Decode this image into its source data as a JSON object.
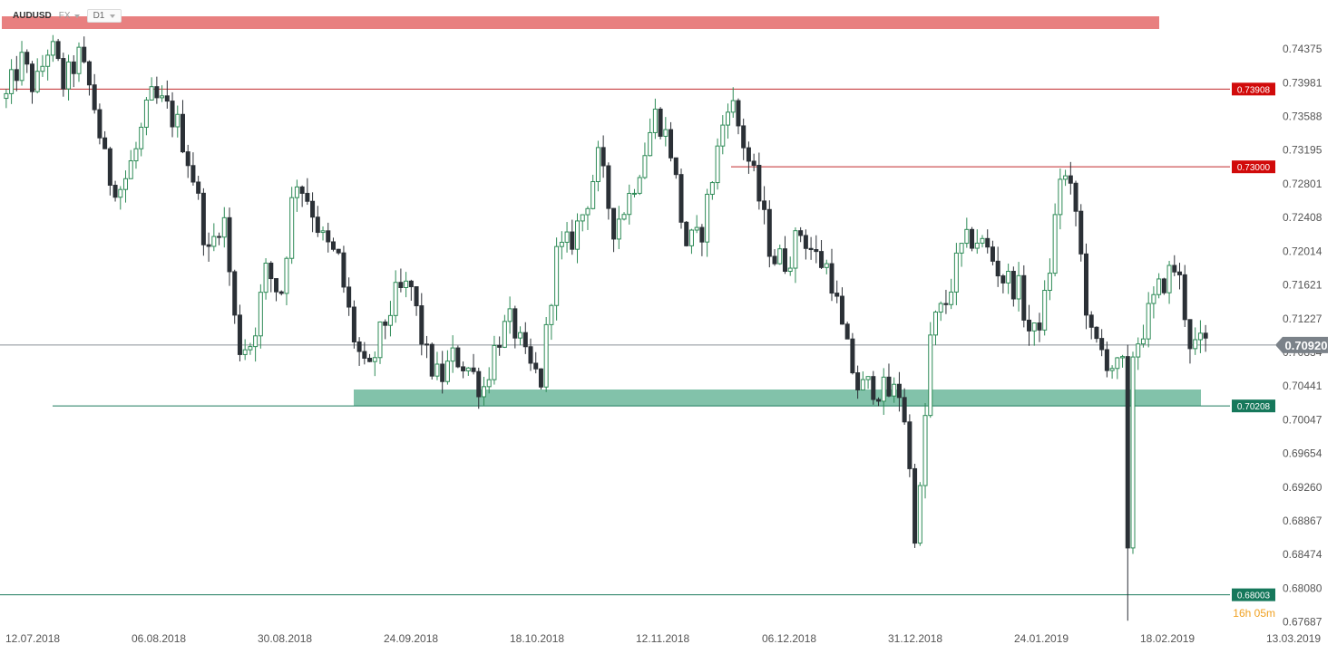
{
  "header": {
    "symbol": "AUDUSD",
    "market": "FX",
    "timeframe": "D1"
  },
  "countdown": "16h 05m",
  "colors": {
    "bull_candle": "#2e8b57",
    "bear_candle": "#2b3036",
    "resistance_line": "#c0292b",
    "support_line": "#1e7b5e",
    "resistance_label_bg": "#d10b0b",
    "support_label_bg": "#16785b",
    "top_zone": "#e88080",
    "support_zone": "#7bbfa5",
    "current_price_bg": "#7b8289",
    "grid_text": "#555555"
  },
  "chart_data": {
    "type": "candlestick",
    "symbol": "AUDUSD",
    "y_range": [
      0.6765,
      0.748
    ],
    "y_ticks": [
      "0.74375",
      "0.73981",
      "0.73588",
      "0.73195",
      "0.72801",
      "0.72408",
      "0.72014",
      "0.71621",
      "0.71227",
      "0.70834",
      "0.70441",
      "0.70047",
      "0.69654",
      "0.69260",
      "0.68867",
      "0.68474",
      "0.68080",
      "0.67687"
    ],
    "x_labels": [
      "12.07.2018",
      "06.08.2018",
      "30.08.2018",
      "24.09.2018",
      "18.10.2018",
      "12.11.2018",
      "06.12.2018",
      "31.12.2018",
      "24.01.2019",
      "18.02.2019",
      "13.03.2019"
    ],
    "current_price": {
      "label": "0.70920",
      "value": 0.7092
    },
    "levels": [
      {
        "label": "0.73908",
        "value": 0.73908,
        "kind": "resistance"
      },
      {
        "label": "0.73000",
        "value": 0.73,
        "kind": "resistance"
      },
      {
        "label": "0.70208",
        "value": 0.70208,
        "kind": "support"
      },
      {
        "label": "0.68003",
        "value": 0.68003,
        "kind": "support"
      }
    ],
    "zones": [
      {
        "kind": "resistance-zone",
        "from": 0.7463,
        "to": 0.7477
      },
      {
        "kind": "support-zone",
        "from": 0.70208,
        "to": 0.704
      }
    ],
    "close_path": [
      0.738,
      0.7425,
      0.739,
      0.7445,
      0.7395,
      0.743,
      0.738,
      0.729,
      0.7275,
      0.732,
      0.738,
      0.737,
      0.7345,
      0.7285,
      0.7195,
      0.725,
      0.709,
      0.7095,
      0.718,
      0.715,
      0.729,
      0.726,
      0.721,
      0.719,
      0.7105,
      0.705,
      0.711,
      0.715,
      0.716,
      0.708,
      0.705,
      0.708,
      0.7065,
      0.704,
      0.71,
      0.712,
      0.707,
      0.705,
      0.7195,
      0.721,
      0.725,
      0.731,
      0.723,
      0.726,
      0.731,
      0.7365,
      0.732,
      0.721,
      0.7215,
      0.73,
      0.7385,
      0.733,
      0.727,
      0.7195,
      0.719,
      0.7225,
      0.7195,
      0.718,
      0.7095,
      0.704,
      0.7045,
      0.7035,
      0.7038,
      0.6855,
      0.711,
      0.714,
      0.72,
      0.722,
      0.72,
      0.717,
      0.716,
      0.7095,
      0.715,
      0.73,
      0.725,
      0.71,
      0.708,
      0.706,
      0.7085,
      0.7125,
      0.7165,
      0.7185,
      0.709,
      0.7092
    ],
    "candle_count": 232
  }
}
